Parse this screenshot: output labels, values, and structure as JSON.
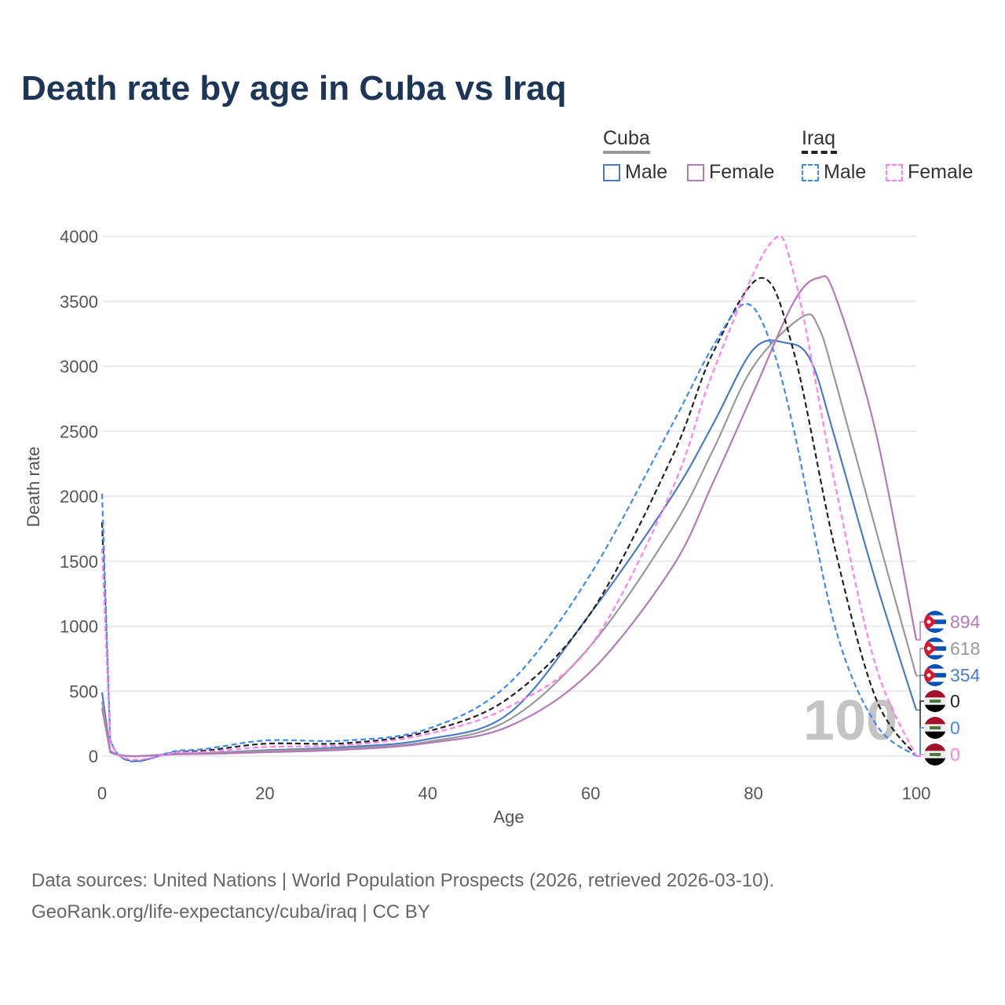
{
  "title": "Death rate by age in Cuba vs Iraq",
  "legend": {
    "groups": [
      {
        "name": "Cuba",
        "color": "#999999",
        "dash": false
      },
      {
        "name": "Iraq",
        "color": "#222222",
        "dash": true
      }
    ],
    "items": [
      {
        "label": "Male",
        "color": "#4a7bc8",
        "dash": false
      },
      {
        "label": "Female",
        "color": "#b679b8",
        "dash": false
      },
      {
        "label": "Male",
        "color": "#3d8af7",
        "dash": true
      },
      {
        "label": "Female",
        "color": "#ff7ff0",
        "dash": true
      }
    ]
  },
  "footer": {
    "line1": "Data sources: United Nations | World Population Prospects (2026, retrieved 2026-03-10).",
    "line2": "GeoRank.org/life-expectancy/cuba/iraq | CC BY"
  },
  "chart_data": {
    "type": "line",
    "xlabel": "Age",
    "ylabel": "Death rate",
    "xlim": [
      0,
      100
    ],
    "ylim": [
      0,
      4000
    ],
    "xticks": [
      0,
      20,
      40,
      60,
      80,
      100
    ],
    "yticks": [
      0,
      500,
      1000,
      1500,
      2000,
      2500,
      3000,
      3500,
      4000
    ],
    "watermark": "100",
    "grid": true,
    "series": [
      {
        "name": "Cuba Male",
        "color": "#4a7bc8",
        "dash": false,
        "flag": "cuba",
        "end_label": "354",
        "x": [
          0,
          1,
          10,
          20,
          30,
          40,
          50,
          60,
          70,
          75,
          80,
          84,
          87,
          90,
          95,
          100
        ],
        "y": [
          490,
          40,
          20,
          45,
          70,
          130,
          330,
          1100,
          2000,
          2550,
          3130,
          3180,
          3050,
          2450,
          1350,
          354
        ]
      },
      {
        "name": "Cuba Both",
        "color": "#999999",
        "dash": false,
        "flag": "cuba",
        "end_label": "618",
        "x": [
          0,
          1,
          10,
          20,
          30,
          40,
          50,
          60,
          70,
          75,
          80,
          86,
          88,
          90,
          95,
          100
        ],
        "y": [
          420,
          35,
          18,
          40,
          60,
          110,
          280,
          850,
          1750,
          2350,
          3000,
          3380,
          3300,
          2900,
          1750,
          618
        ]
      },
      {
        "name": "Cuba Female",
        "color": "#b679b8",
        "dash": false,
        "flag": "cuba",
        "end_label": "894",
        "x": [
          0,
          1,
          10,
          20,
          30,
          40,
          50,
          60,
          70,
          75,
          80,
          85,
          88,
          90,
          95,
          100
        ],
        "y": [
          370,
          30,
          15,
          30,
          50,
          100,
          230,
          650,
          1450,
          2100,
          2800,
          3500,
          3680,
          3550,
          2500,
          894
        ]
      },
      {
        "name": "Iraq Both",
        "color": "#222222",
        "dash": true,
        "flag": "iraq",
        "end_label": "0",
        "x": [
          0,
          1,
          10,
          20,
          30,
          40,
          50,
          60,
          70,
          75,
          81,
          85,
          90,
          95,
          100
        ],
        "y": [
          1800,
          120,
          35,
          95,
          100,
          190,
          450,
          1100,
          2300,
          3100,
          3680,
          3100,
          1600,
          450,
          0
        ]
      },
      {
        "name": "Iraq Male",
        "color": "#3d8af7",
        "dash": true,
        "flag": "iraq",
        "end_label": "0",
        "x": [
          0,
          1,
          10,
          20,
          30,
          40,
          50,
          60,
          70,
          75,
          79,
          82,
          85,
          90,
          95,
          100
        ],
        "y": [
          2020,
          130,
          45,
          120,
          120,
          210,
          560,
          1400,
          2550,
          3150,
          3480,
          3200,
          2500,
          1000,
          250,
          0
        ]
      },
      {
        "name": "Iraq Female",
        "color": "#ff7ff0",
        "dash": true,
        "flag": "iraq",
        "end_label": "0",
        "x": [
          0,
          1,
          10,
          20,
          30,
          40,
          50,
          60,
          70,
          75,
          82,
          85,
          90,
          95,
          100
        ],
        "y": [
          1600,
          110,
          30,
          70,
          85,
          170,
          380,
          850,
          2050,
          2950,
          3940,
          3700,
          2100,
          700,
          0
        ]
      }
    ]
  }
}
